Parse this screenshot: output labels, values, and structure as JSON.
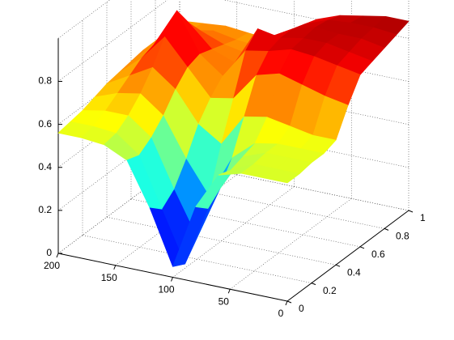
{
  "chart_data": {
    "type": "surface",
    "colormap": "jet",
    "grid": true,
    "x": [
      0,
      20,
      40,
      60,
      80,
      100,
      120,
      140,
      160,
      180,
      200
    ],
    "y": [
      0,
      0.1,
      0.2,
      0.3,
      0.4,
      0.5,
      0.6,
      0.7,
      0.8,
      0.9,
      1
    ],
    "z": [
      [
        0.55,
        0.55,
        0.55,
        0.52,
        0.35,
        0.05,
        0.3,
        0.5,
        0.55,
        0.56,
        0.56
      ],
      [
        0.55,
        0.55,
        0.55,
        0.5,
        0.3,
        0.02,
        0.25,
        0.48,
        0.56,
        0.57,
        0.57
      ],
      [
        0.56,
        0.56,
        0.56,
        0.52,
        0.35,
        0.1,
        0.3,
        0.52,
        0.6,
        0.6,
        0.58
      ],
      [
        0.56,
        0.56,
        0.56,
        0.54,
        0.45,
        0.25,
        0.4,
        0.58,
        0.66,
        0.64,
        0.6
      ],
      [
        0.58,
        0.58,
        0.6,
        0.62,
        0.6,
        0.45,
        0.52,
        0.66,
        0.74,
        0.68,
        0.62
      ],
      [
        0.7,
        0.72,
        0.75,
        0.78,
        0.75,
        0.62,
        0.6,
        0.72,
        0.84,
        0.72,
        0.63
      ],
      [
        0.8,
        0.82,
        0.84,
        0.85,
        0.82,
        0.8,
        0.66,
        0.74,
        0.92,
        0.74,
        0.64
      ],
      [
        0.82,
        0.84,
        0.86,
        0.86,
        0.84,
        0.86,
        0.68,
        0.72,
        0.82,
        0.72,
        0.65
      ],
      [
        0.84,
        0.86,
        0.86,
        0.87,
        0.84,
        0.78,
        0.68,
        0.7,
        0.74,
        0.7,
        0.65
      ],
      [
        0.86,
        0.87,
        0.87,
        0.86,
        0.82,
        0.74,
        0.67,
        0.68,
        0.7,
        0.68,
        0.66
      ],
      [
        0.88,
        0.88,
        0.86,
        0.84,
        0.8,
        0.72,
        0.66,
        0.67,
        0.68,
        0.67,
        0.66
      ]
    ],
    "xlim": [
      0,
      200
    ],
    "xticks": [
      0,
      50,
      100,
      150,
      200
    ],
    "ylim": [
      0,
      1
    ],
    "yticks": [
      0,
      0.2,
      0.4,
      0.6,
      0.8,
      1
    ],
    "zlim": [
      0,
      1
    ],
    "zticks": [
      0,
      0.2,
      0.4,
      0.6,
      0.8
    ]
  }
}
